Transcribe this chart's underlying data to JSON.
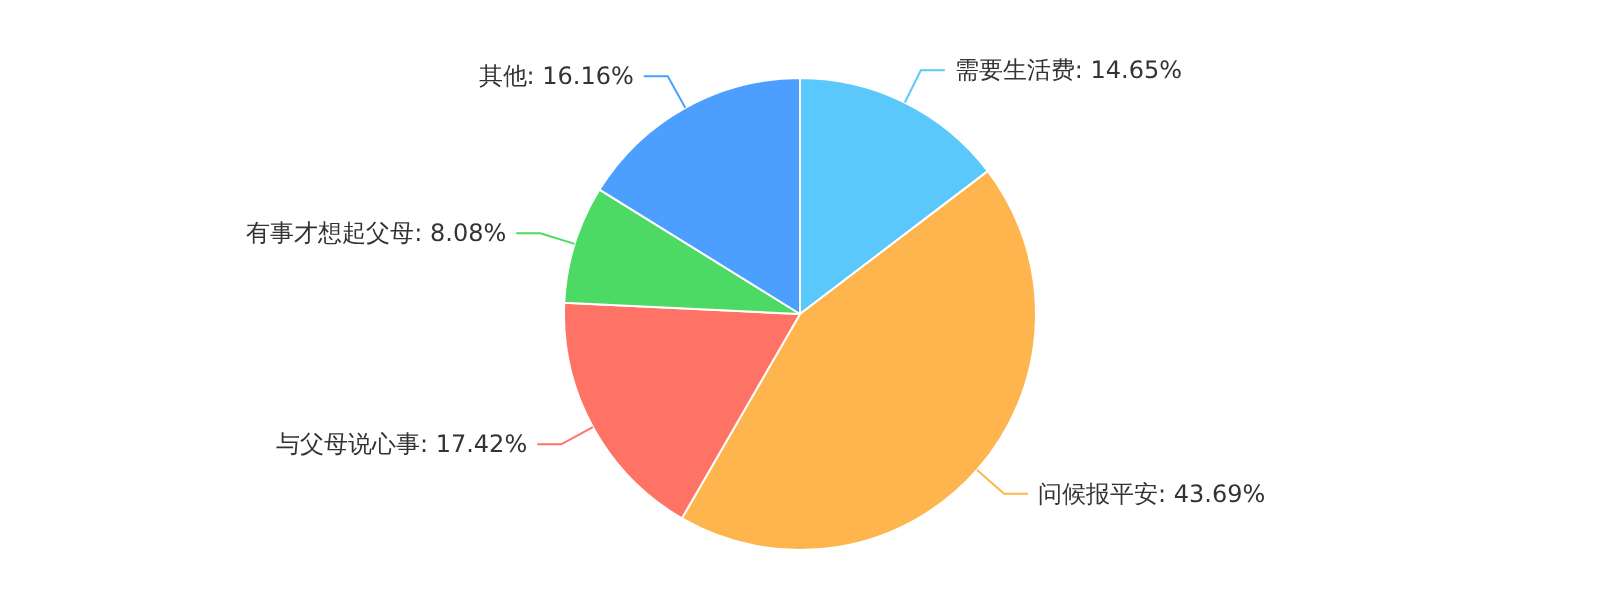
{
  "chart_data": {
    "type": "pie",
    "categories": [
      "需要生活费",
      "问候报平安",
      "与父母说心事",
      "有事才想起父母",
      "其他"
    ],
    "values": [
      14.65,
      43.69,
      17.42,
      8.08,
      16.16
    ],
    "value_labels": [
      "14.65%",
      "43.69%",
      "17.42%",
      "8.08%",
      "16.16%"
    ],
    "colors": [
      "#5ac8fa",
      "#ffb54d",
      "#ff7366",
      "#4cd964",
      "#4c9fff"
    ]
  }
}
